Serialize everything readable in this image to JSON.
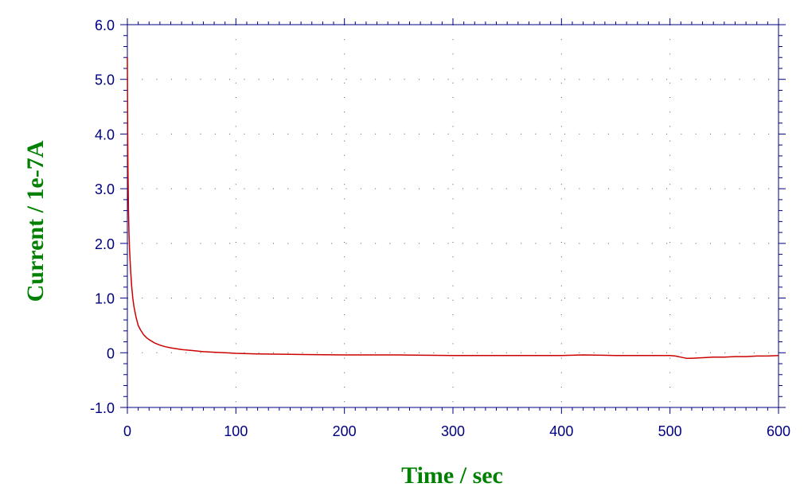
{
  "chart_data": {
    "type": "line",
    "title": "",
    "xlabel": "Time / sec",
    "ylabel": "Current / 1e-7A",
    "xlim": [
      0,
      600
    ],
    "ylim": [
      -1.0,
      6.0
    ],
    "x_ticks": [
      0,
      100,
      200,
      300,
      400,
      500,
      600
    ],
    "x_tick_labels": [
      "0",
      "100",
      "200",
      "300",
      "400",
      "500",
      "600"
    ],
    "y_ticks": [
      -1.0,
      0,
      1.0,
      2.0,
      3.0,
      4.0,
      5.0,
      6.0
    ],
    "y_tick_labels": [
      "-1.0",
      "0",
      "1.0",
      "2.0",
      "3.0",
      "4.0",
      "5.0",
      "6.0"
    ],
    "grid": true,
    "grid_style": "dotted",
    "series": [
      {
        "color": "#cc0000",
        "x": [
          0,
          0.3,
          0.6,
          1,
          1.5,
          2,
          3,
          4,
          5,
          6,
          8,
          10,
          12,
          15,
          18,
          20,
          25,
          30,
          35,
          40,
          50,
          60,
          70,
          80,
          90,
          100,
          120,
          150,
          200,
          250,
          300,
          350,
          400,
          420,
          450,
          480,
          500,
          505,
          510,
          515,
          520,
          530,
          540,
          550,
          560,
          570,
          580,
          590,
          600
        ],
        "y": [
          5.4,
          4.0,
          3.3,
          2.6,
          2.2,
          1.9,
          1.5,
          1.2,
          1.0,
          0.85,
          0.65,
          0.5,
          0.42,
          0.33,
          0.27,
          0.24,
          0.18,
          0.14,
          0.11,
          0.09,
          0.06,
          0.04,
          0.02,
          0.01,
          0.0,
          -0.01,
          -0.02,
          -0.03,
          -0.04,
          -0.04,
          -0.05,
          -0.05,
          -0.05,
          -0.04,
          -0.05,
          -0.05,
          -0.05,
          -0.06,
          -0.08,
          -0.1,
          -0.1,
          -0.09,
          -0.08,
          -0.08,
          -0.07,
          -0.07,
          -0.06,
          -0.06,
          -0.05
        ]
      }
    ]
  }
}
